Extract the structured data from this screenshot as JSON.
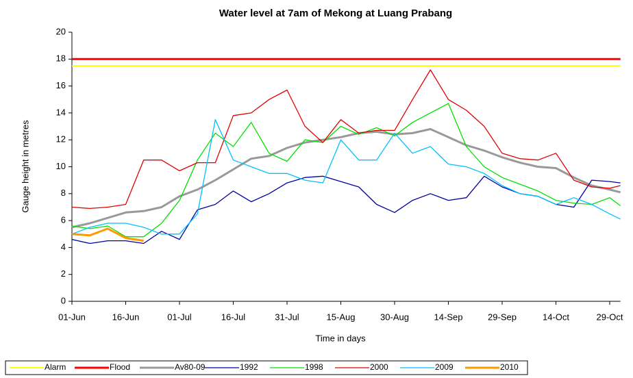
{
  "chart_data": {
    "type": "line",
    "title": "Water level at 7am of Mekong at Luang Prabang",
    "x_label": "Time in days",
    "y_label": "Gauge height in metres",
    "x": [
      0,
      5,
      10,
      15,
      20,
      25,
      30,
      35,
      40,
      45,
      50,
      55,
      60,
      65,
      70,
      75,
      80,
      85,
      90,
      95,
      100,
      105,
      110,
      115,
      120,
      125,
      130,
      135,
      140,
      145,
      150,
      153
    ],
    "xlim": [
      0,
      153
    ],
    "xticks": [
      {
        "value": 0,
        "label": "01-Jun"
      },
      {
        "value": 15,
        "label": "16-Jun"
      },
      {
        "value": 30,
        "label": "01-Jul"
      },
      {
        "value": 45,
        "label": "16-Jul"
      },
      {
        "value": 60,
        "label": "31-Jul"
      },
      {
        "value": 75,
        "label": "15-Aug"
      },
      {
        "value": 90,
        "label": "30-Aug"
      },
      {
        "value": 105,
        "label": "14-Sep"
      },
      {
        "value": 120,
        "label": "29-Sep"
      },
      {
        "value": 135,
        "label": "14-Oct"
      },
      {
        "value": 150,
        "label": "29-Oct"
      }
    ],
    "ylim": [
      0,
      20
    ],
    "yticks": [
      0,
      2,
      4,
      6,
      8,
      10,
      12,
      14,
      16,
      18,
      20
    ],
    "grid": false,
    "legend": "bottom",
    "series": [
      {
        "name": "Alarm",
        "color": "#ffff00",
        "x": [
          0,
          153
        ],
        "values": [
          17.5,
          17.5
        ]
      },
      {
        "name": "Flood",
        "color": "#ff0000",
        "x": [
          0,
          153
        ],
        "values": [
          18,
          18
        ]
      },
      {
        "name": "Av80-09",
        "color": "#999999",
        "values": [
          5.5,
          5.8,
          6.2,
          6.6,
          6.7,
          7.0,
          7.8,
          8.3,
          9.0,
          9.8,
          10.6,
          10.8,
          11.4,
          11.8,
          12.0,
          12.2,
          12.5,
          12.6,
          12.4,
          12.5,
          12.8,
          12.2,
          11.6,
          11.2,
          10.7,
          10.3,
          10.0,
          9.9,
          9.2,
          8.6,
          8.3,
          8.1
        ]
      },
      {
        "name": "1992",
        "color": "#0000a0",
        "values": [
          4.6,
          4.3,
          4.5,
          4.5,
          4.3,
          5.2,
          4.6,
          6.8,
          7.2,
          8.2,
          7.4,
          8.0,
          8.8,
          9.2,
          9.3,
          8.9,
          8.5,
          7.2,
          6.6,
          7.5,
          8.0,
          7.5,
          7.7,
          9.3,
          8.5,
          8.0,
          7.8,
          7.2,
          7.0,
          9.0,
          8.9,
          8.8
        ]
      },
      {
        "name": "1998",
        "color": "#00e000",
        "values": [
          5.6,
          5.4,
          5.6,
          4.8,
          4.8,
          5.8,
          7.5,
          10.5,
          12.5,
          11.5,
          13.3,
          11.0,
          10.4,
          12.0,
          11.8,
          13.0,
          12.4,
          12.9,
          12.3,
          13.3,
          14.0,
          14.7,
          11.5,
          10.0,
          9.2,
          8.7,
          8.2,
          7.5,
          7.3,
          7.2,
          7.7,
          7.1
        ]
      },
      {
        "name": "2000",
        "color": "#e00000",
        "values": [
          7.0,
          6.9,
          7.0,
          7.2,
          10.5,
          10.5,
          9.7,
          10.3,
          10.3,
          13.8,
          14.0,
          15.0,
          15.7,
          13.0,
          11.8,
          13.5,
          12.5,
          12.7,
          12.7,
          15.0,
          17.2,
          15.0,
          14.2,
          13.0,
          11.0,
          10.6,
          10.5,
          11.0,
          9.0,
          8.5,
          8.4,
          8.6
        ]
      },
      {
        "name": "2009",
        "color": "#00c0ff",
        "values": [
          5.0,
          5.5,
          5.8,
          5.8,
          5.5,
          5.0,
          5.0,
          6.5,
          13.5,
          10.5,
          10.0,
          9.5,
          9.5,
          9.0,
          8.8,
          12.0,
          10.5,
          10.5,
          12.5,
          11.0,
          11.5,
          10.2,
          10.0,
          9.5,
          8.6,
          8.0,
          7.8,
          7.2,
          7.7,
          7.2,
          6.5,
          6.1
        ]
      },
      {
        "name": "2010",
        "color": "#ff9900",
        "values": [
          5.0,
          4.9,
          5.4,
          4.7,
          4.5,
          null,
          null,
          null,
          null,
          null,
          null,
          null,
          null,
          null,
          null,
          null,
          null,
          null,
          null,
          null,
          null,
          null,
          null,
          null,
          null,
          null,
          null,
          null,
          null,
          null,
          null,
          null
        ]
      }
    ]
  }
}
